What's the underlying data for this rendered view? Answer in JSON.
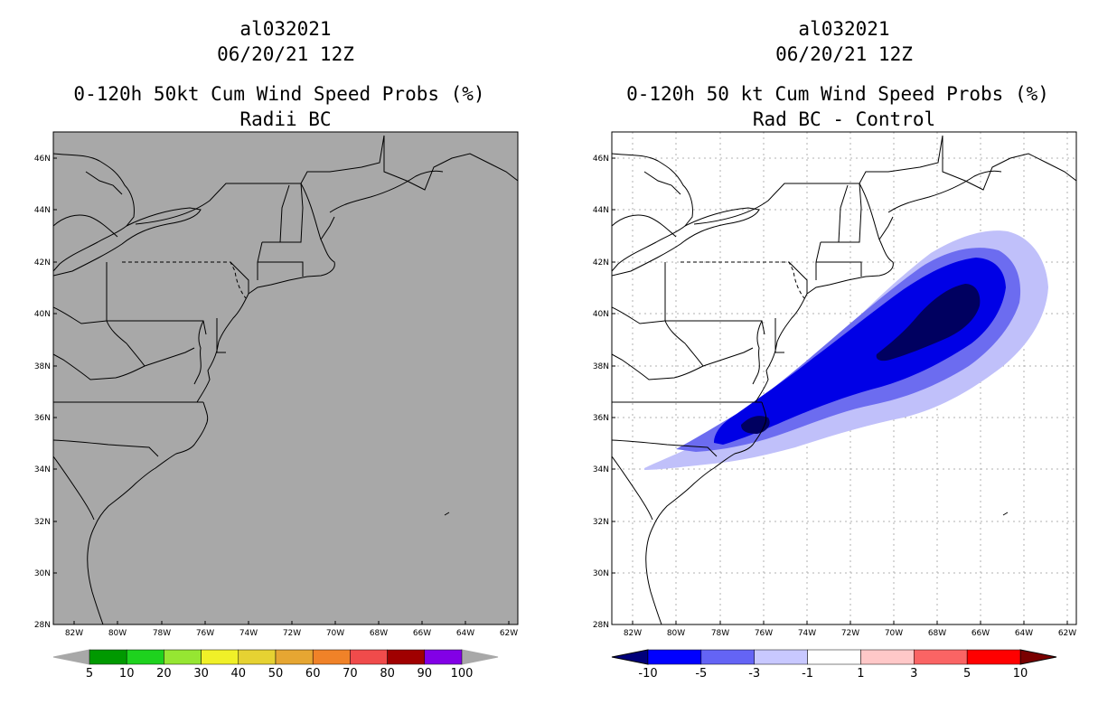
{
  "left": {
    "storm_id": "al032021",
    "datetime": "06/20/21 12Z",
    "title": "0-120h 50kt Cum Wind Speed Probs (%)",
    "subtitle": "Radii BC",
    "colorbar": {
      "labels": [
        "5",
        "10",
        "20",
        "30",
        "40",
        "50",
        "60",
        "70",
        "80",
        "90",
        "100"
      ],
      "colors": [
        "#009900",
        "#1ed21e",
        "#96e632",
        "#f0f028",
        "#e6d232",
        "#e6a632",
        "#f08228",
        "#f04b4b",
        "#a00000",
        "#8200e6"
      ]
    }
  },
  "right": {
    "storm_id": "al032021",
    "datetime": "06/20/21 12Z",
    "title": "0-120h 50 kt Cum Wind Speed Probs (%)",
    "subtitle": "Rad BC - Control",
    "colorbar": {
      "labels": [
        "-10",
        "-5",
        "-3",
        "-1",
        "1",
        "3",
        "5",
        "10"
      ],
      "colors": [
        "#00007a",
        "#0000ff",
        "#6464f5",
        "#c8c8ff",
        "#ffffff",
        "#ffc8c8",
        "#fa6464",
        "#ff0000",
        "#7a0000"
      ]
    }
  },
  "axes": {
    "lat_labels": [
      "46N",
      "44N",
      "42N",
      "40N",
      "38N",
      "36N",
      "34N",
      "32N",
      "30N",
      "28N"
    ],
    "lon_labels": [
      "82W",
      "80W",
      "78W",
      "76W",
      "74W",
      "72W",
      "70W",
      "68W",
      "66W",
      "64W",
      "62W"
    ]
  },
  "colors": {
    "land_ocean_gray": "#a8a8a8",
    "contour_darkest": "#000060",
    "contour_dark": "#0000e6",
    "contour_mid": "#6c6cf0",
    "contour_light": "#c0c0fa"
  }
}
